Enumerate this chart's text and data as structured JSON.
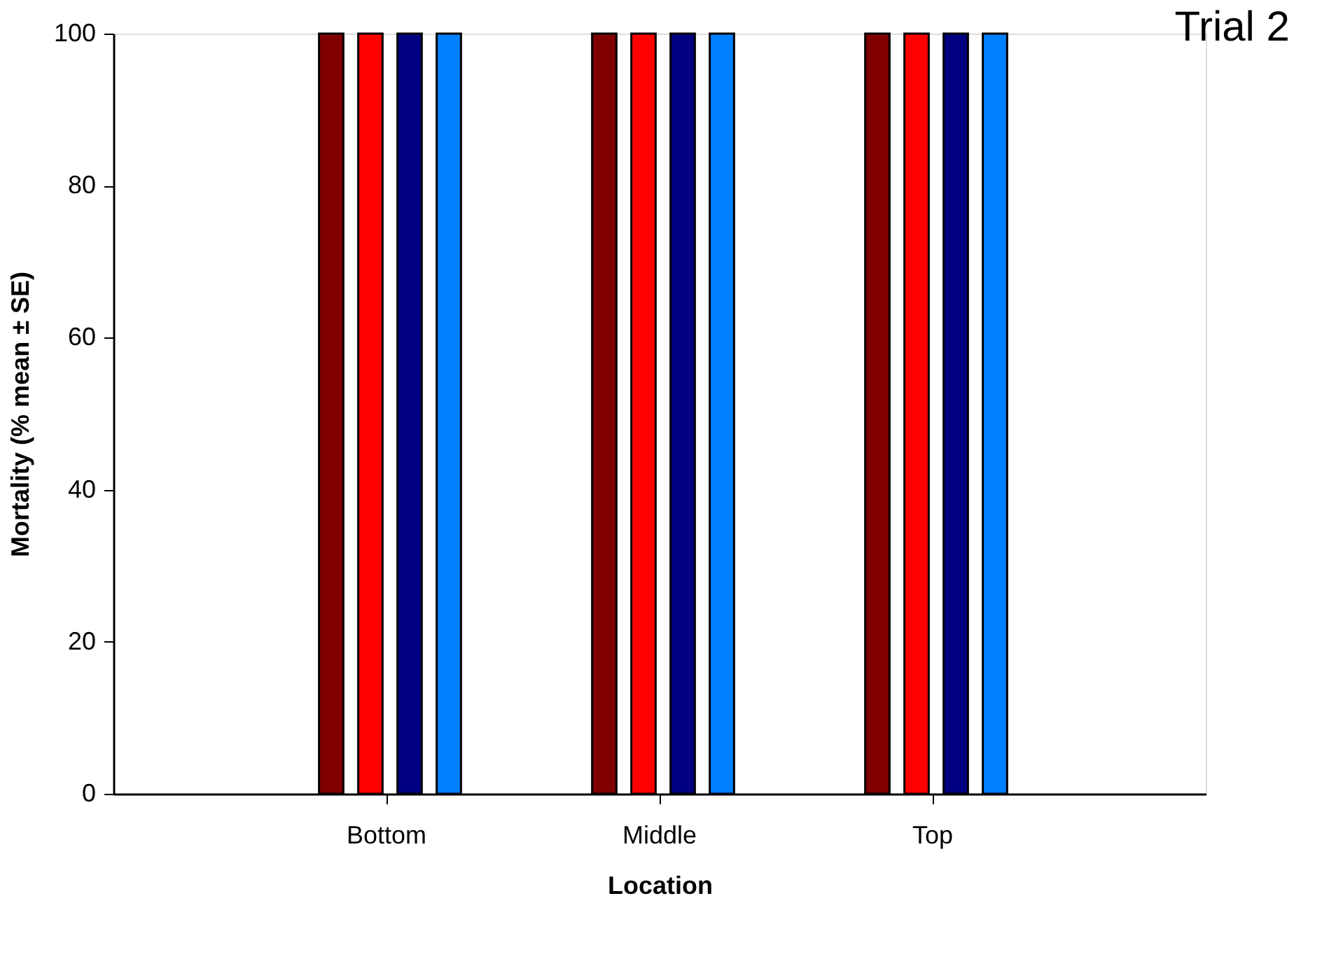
{
  "chart_data": {
    "type": "bar",
    "title": "Trial 2",
    "xlabel": "Location",
    "ylabel": "Mortality (% mean ± SE)",
    "categories": [
      "Bottom",
      "Middle",
      "Top"
    ],
    "series": [
      {
        "color": "#800000",
        "values": [
          100,
          100,
          100
        ]
      },
      {
        "color": "#ff0000",
        "values": [
          100,
          100,
          100
        ]
      },
      {
        "color": "#000080",
        "values": [
          100,
          100,
          100
        ]
      },
      {
        "color": "#0080ff",
        "values": [
          100,
          100,
          100
        ]
      }
    ],
    "ylim": [
      0,
      100
    ],
    "yticks": [
      0,
      20,
      40,
      60,
      80,
      100
    ],
    "grid": false,
    "legend": false
  }
}
